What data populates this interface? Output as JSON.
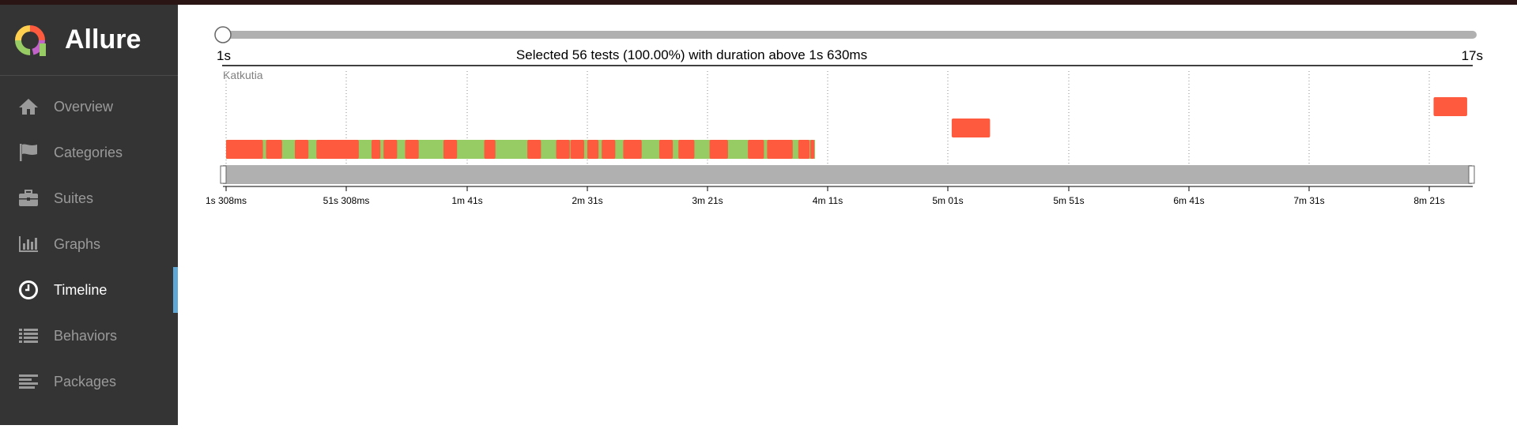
{
  "app": {
    "name": "Allure"
  },
  "sidebar": {
    "items": [
      {
        "label": "Overview",
        "icon": "home-icon"
      },
      {
        "label": "Categories",
        "icon": "flag-icon"
      },
      {
        "label": "Suites",
        "icon": "briefcase-icon"
      },
      {
        "label": "Graphs",
        "icon": "bar-chart-icon"
      },
      {
        "label": "Timeline",
        "icon": "clock-icon",
        "active": true
      },
      {
        "label": "Behaviors",
        "icon": "list-icon"
      },
      {
        "label": "Packages",
        "icon": "align-left-icon"
      }
    ]
  },
  "timeline": {
    "slider_min": "1s",
    "slider_max": "17s",
    "selection_text": "Selected 56 tests (100.00%) with duration above 1s 630ms",
    "host_label": "Katkutia",
    "axis_ticks": [
      "1s 308ms",
      "51s 308ms",
      "1m 41s",
      "2m 31s",
      "3m 21s",
      "4m 11s",
      "5m 01s",
      "5m 51s",
      "6m 41s",
      "7m 31s",
      "8m 21s"
    ],
    "colors": {
      "failed": "#fd5a3e",
      "passed": "#97cc64",
      "axis": "#b0b0b0"
    },
    "main_lane": {
      "start_s": 1.3,
      "end_s": 247,
      "failed_starts_s": [
        1.3,
        18,
        30,
        39,
        62,
        67,
        76,
        92,
        109,
        127,
        139,
        145,
        152,
        158,
        167,
        182,
        190,
        203,
        219,
        227,
        240,
        245
      ],
      "failed_ends_s": [
        17,
        25,
        36,
        57,
        66,
        73,
        82,
        98,
        114,
        133,
        145,
        151,
        157,
        164,
        175,
        188,
        197,
        211,
        226,
        238,
        245,
        247
      ]
    },
    "other_bars": [
      {
        "lane": 1,
        "start_s": 304,
        "end_s": 320,
        "status": "failed"
      },
      {
        "lane": 2,
        "start_s": 505,
        "end_s": 519,
        "status": "failed"
      }
    ],
    "axis_range_s": [
      0,
      521
    ]
  }
}
